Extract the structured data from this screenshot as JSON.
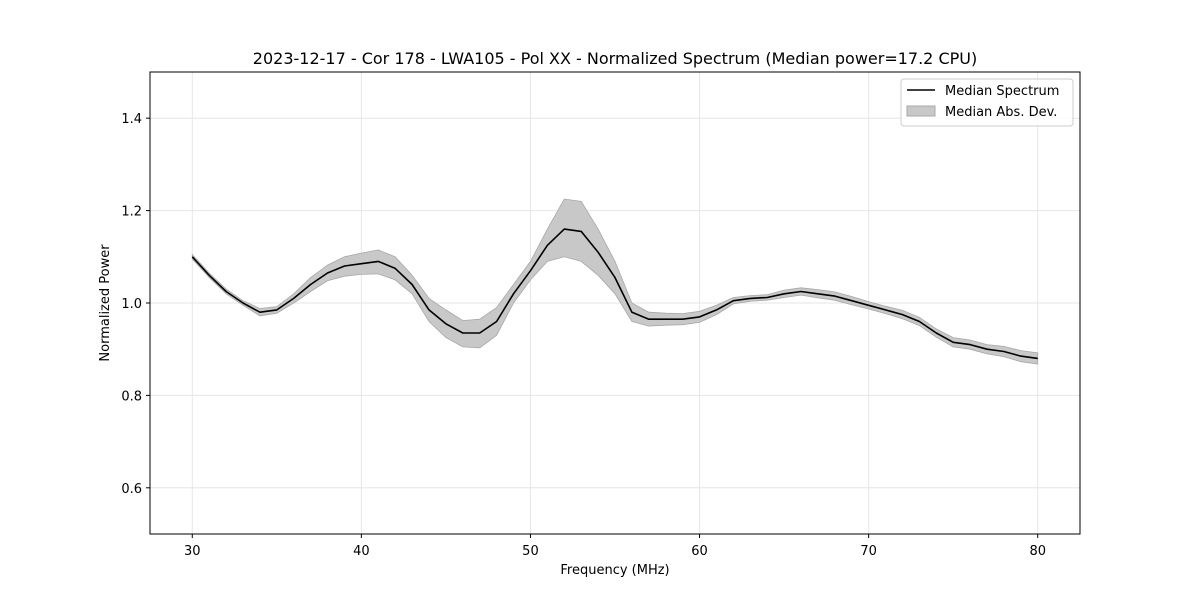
{
  "chart_data": {
    "type": "line",
    "title": "2023-12-17 - Cor 178 - LWA105 - Pol XX - Normalized Spectrum (Median power=17.2 CPU)",
    "xlabel": "Frequency (MHz)",
    "ylabel": "Normalized Power",
    "xlim": [
      27.5,
      82.5
    ],
    "ylim": [
      0.5,
      1.5
    ],
    "xticks": [
      30,
      40,
      50,
      60,
      70,
      80
    ],
    "yticks": [
      0.6,
      0.8,
      1.0,
      1.2,
      1.4
    ],
    "xtick_labels": [
      "30",
      "40",
      "50",
      "60",
      "70",
      "80"
    ],
    "ytick_labels": [
      "0.6",
      "0.8",
      "1.0",
      "1.2",
      "1.4"
    ],
    "grid": true,
    "legend_position": "top-right",
    "series": [
      {
        "name": "Median Spectrum",
        "color": "#000000",
        "x": [
          30,
          31,
          32,
          33,
          34,
          35,
          36,
          37,
          38,
          39,
          40,
          41,
          42,
          43,
          44,
          45,
          46,
          47,
          48,
          49,
          50,
          51,
          52,
          53,
          54,
          55,
          56,
          57,
          58,
          59,
          60,
          61,
          62,
          63,
          64,
          65,
          66,
          67,
          68,
          69,
          70,
          71,
          72,
          73,
          74,
          75,
          76,
          77,
          78,
          79,
          80
        ],
        "values": [
          1.1,
          1.06,
          1.025,
          1.0,
          0.98,
          0.985,
          1.01,
          1.04,
          1.065,
          1.08,
          1.085,
          1.09,
          1.075,
          1.04,
          0.985,
          0.955,
          0.935,
          0.935,
          0.96,
          1.02,
          1.07,
          1.125,
          1.16,
          1.155,
          1.11,
          1.055,
          0.98,
          0.965,
          0.965,
          0.965,
          0.97,
          0.985,
          1.005,
          1.01,
          1.012,
          1.02,
          1.025,
          1.02,
          1.015,
          1.005,
          0.995,
          0.985,
          0.975,
          0.96,
          0.935,
          0.915,
          0.91,
          0.9,
          0.895,
          0.885,
          0.88
        ]
      }
    ],
    "band": {
      "name": "Median Abs. Dev.",
      "color": "#c8c8c8",
      "x": [
        30,
        31,
        32,
        33,
        34,
        35,
        36,
        37,
        38,
        39,
        40,
        41,
        42,
        43,
        44,
        45,
        46,
        47,
        48,
        49,
        50,
        51,
        52,
        53,
        54,
        55,
        56,
        57,
        58,
        59,
        60,
        61,
        62,
        63,
        64,
        65,
        66,
        67,
        68,
        69,
        70,
        71,
        72,
        73,
        74,
        75,
        76,
        77,
        78,
        79,
        80
      ],
      "lower": [
        1.095,
        1.055,
        1.02,
        0.995,
        0.972,
        0.978,
        1.0,
        1.025,
        1.048,
        1.058,
        1.062,
        1.063,
        1.05,
        1.02,
        0.96,
        0.925,
        0.905,
        0.903,
        0.93,
        1.0,
        1.05,
        1.09,
        1.1,
        1.09,
        1.06,
        1.02,
        0.96,
        0.95,
        0.952,
        0.953,
        0.958,
        0.975,
        0.998,
        1.004,
        1.006,
        1.012,
        1.017,
        1.011,
        1.006,
        0.996,
        0.987,
        0.977,
        0.966,
        0.951,
        0.926,
        0.905,
        0.9,
        0.89,
        0.884,
        0.873,
        0.868
      ],
      "upper": [
        1.105,
        1.065,
        1.03,
        1.005,
        0.988,
        0.992,
        1.02,
        1.055,
        1.082,
        1.1,
        1.108,
        1.115,
        1.1,
        1.06,
        1.01,
        0.985,
        0.962,
        0.965,
        0.99,
        1.04,
        1.09,
        1.16,
        1.225,
        1.22,
        1.16,
        1.09,
        1.0,
        0.98,
        0.978,
        0.977,
        0.982,
        0.995,
        1.012,
        1.016,
        1.018,
        1.028,
        1.033,
        1.029,
        1.024,
        1.014,
        1.003,
        0.993,
        0.984,
        0.969,
        0.944,
        0.925,
        0.92,
        0.91,
        0.906,
        0.897,
        0.892
      ]
    }
  }
}
